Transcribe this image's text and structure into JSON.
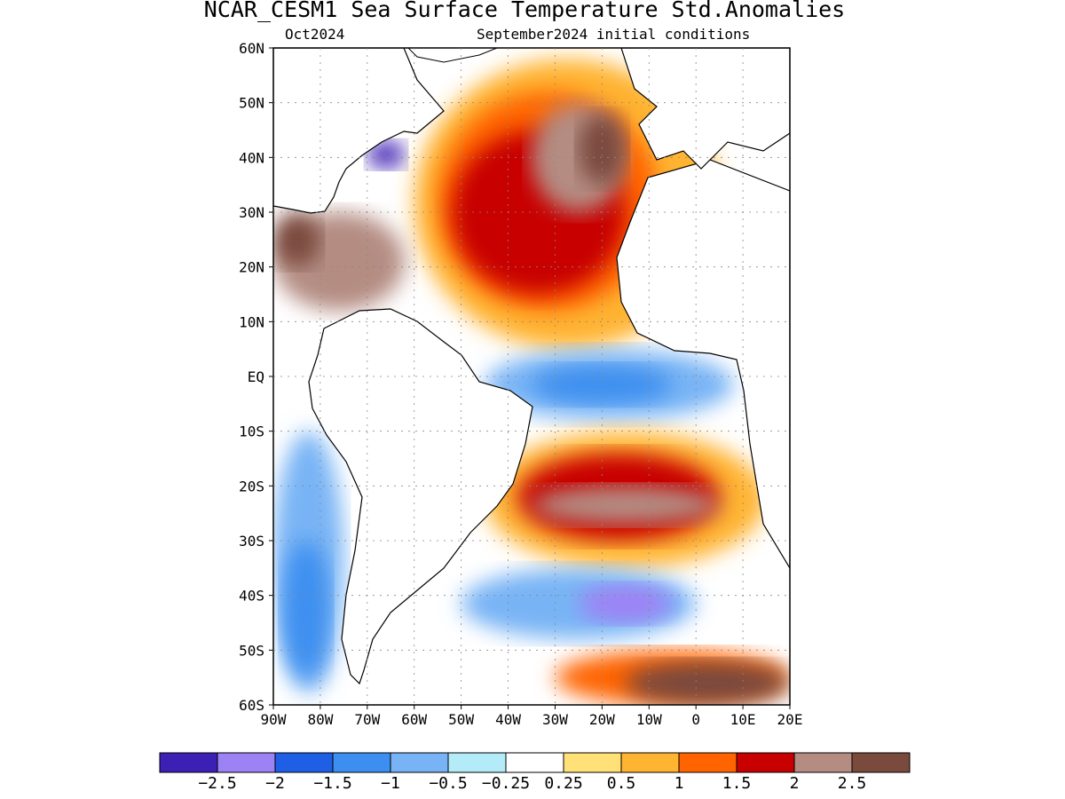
{
  "title": "NCAR_CESM1 Sea Surface Temperature Std.Anomalies",
  "subtitle_left": "Oct2024",
  "subtitle_right": "September2024 initial conditions",
  "lat_labels": [
    "60N",
    "50N",
    "40N",
    "30N",
    "20N",
    "10N",
    "EQ",
    "10S",
    "20S",
    "30S",
    "40S",
    "50S",
    "60S"
  ],
  "lon_labels": [
    "90W",
    "80W",
    "70W",
    "60W",
    "50W",
    "40W",
    "30W",
    "20W",
    "10W",
    "0",
    "10E",
    "20E"
  ],
  "colorbar": {
    "colors": [
      "#3c1fb4",
      "#9d82f5",
      "#1e5fe6",
      "#3c8ff0",
      "#78b4f5",
      "#b4ebf8",
      "#ffffff",
      "#ffe178",
      "#ffb432",
      "#ff6400",
      "#c80000",
      "#b48c82",
      "#7a4a3c"
    ],
    "labels": [
      "-2.5",
      "-2",
      "-1.5",
      "-1",
      "-0.5",
      "-0.25",
      "0.25",
      "0.5",
      "1",
      "1.5",
      "2",
      "2.5"
    ]
  },
  "map": {
    "extent": {
      "lon_min": -90,
      "lon_max": 20,
      "lat_min": -60,
      "lat_max": 60
    },
    "anomaly_patches": [
      {
        "name": "north-atlantic-warm",
        "lon": [
          -60,
          5
        ],
        "lat": [
          5,
          58
        ],
        "color": "#ffb432"
      },
      {
        "name": "north-atlantic-warmer",
        "lon": [
          -55,
          -8
        ],
        "lat": [
          12,
          52
        ],
        "color": "#ff6400"
      },
      {
        "name": "north-atlantic-core",
        "lon": [
          -52,
          -15
        ],
        "lat": [
          15,
          45
        ],
        "color": "#c80000"
      },
      {
        "name": "north-atlantic-peak",
        "lon": [
          -35,
          -15
        ],
        "lat": [
          30,
          50
        ],
        "color": "#b48c82"
      },
      {
        "name": "north-atlantic-max",
        "lon": [
          -25,
          -15
        ],
        "lat": [
          35,
          48
        ],
        "color": "#7a4a3c"
      },
      {
        "name": "caribbean-warm",
        "lon": [
          -90,
          -62
        ],
        "lat": [
          12,
          30
        ],
        "color": "#b48c82"
      },
      {
        "name": "caribbean-max",
        "lon": [
          -90,
          -80
        ],
        "lat": [
          20,
          30
        ],
        "color": "#7a4a3c"
      },
      {
        "name": "gulf-stream-cold",
        "lon": [
          -70,
          -62
        ],
        "lat": [
          38,
          43
        ],
        "color": "#3c1fb4"
      },
      {
        "name": "equatorial-cold",
        "lon": [
          -45,
          8
        ],
        "lat": [
          -8,
          5
        ],
        "color": "#78b4f5"
      },
      {
        "name": "equatorial-colder",
        "lon": [
          -35,
          -5
        ],
        "lat": [
          -5,
          2
        ],
        "color": "#3c8ff0"
      },
      {
        "name": "south-atlantic-warm",
        "lon": [
          -45,
          15
        ],
        "lat": [
          -35,
          -10
        ],
        "color": "#ffb432"
      },
      {
        "name": "south-atlantic-warmer",
        "lon": [
          -38,
          5
        ],
        "lat": [
          -30,
          -14
        ],
        "color": "#c80000"
      },
      {
        "name": "south-atlantic-peak",
        "lon": [
          -35,
          5
        ],
        "lat": [
          -27,
          -20
        ],
        "color": "#b48c82"
      },
      {
        "name": "southern-cold",
        "lon": [
          -50,
          0
        ],
        "lat": [
          -48,
          -35
        ],
        "color": "#78b4f5"
      },
      {
        "name": "southern-colder",
        "lon": [
          -25,
          -5
        ],
        "lat": [
          -45,
          -38
        ],
        "color": "#9d82f5"
      },
      {
        "name": "pacific-cold",
        "lon": [
          -90,
          -75
        ],
        "lat": [
          -58,
          -10
        ],
        "color": "#78b4f5"
      },
      {
        "name": "pacific-colder",
        "lon": [
          -88,
          -78
        ],
        "lat": [
          -55,
          -30
        ],
        "color": "#3c8ff0"
      },
      {
        "name": "southern-ocean-warm",
        "lon": [
          -30,
          20
        ],
        "lat": [
          -60,
          -50
        ],
        "color": "#ff6400"
      },
      {
        "name": "southern-ocean-peak",
        "lon": [
          -15,
          20
        ],
        "lat": [
          -60,
          -52
        ],
        "color": "#7a4a3c"
      }
    ]
  }
}
